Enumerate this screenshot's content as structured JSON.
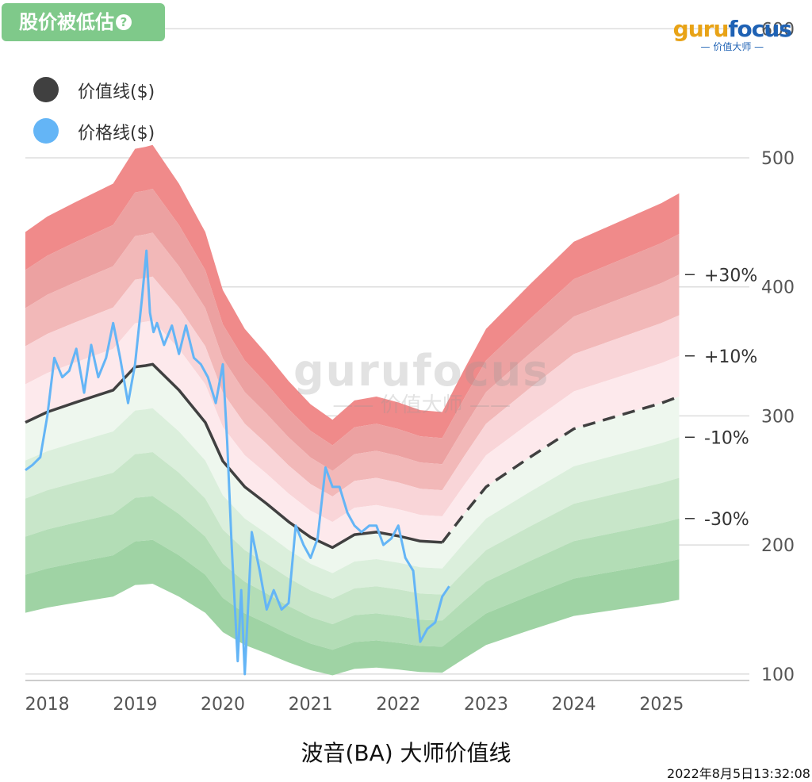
{
  "badge": {
    "label": "股价被低估",
    "help_icon": "question-icon"
  },
  "logo": {
    "part1": "guru",
    "part2": "focus",
    "tagline": "价值大师"
  },
  "watermark": {
    "word": "gurufocus",
    "tagline": "价值大师"
  },
  "legend": [
    {
      "label": "价值线($)",
      "color": "#404040"
    },
    {
      "label": "价格线($)",
      "color": "#64b5f6"
    }
  ],
  "caption": "波音(BA) 大师价值线",
  "timestamp": "2022年8月5日13:32:08",
  "colors": {
    "value_line": "#404040",
    "price_line": "#64b5f6",
    "red_bands": [
      "#f08a8a",
      "#eca1a1",
      "#f2b8b8",
      "#f9d5d8",
      "#fde9ec"
    ],
    "green_bands": [
      "#eef7ee",
      "#dbefdc",
      "#c8e6c9",
      "#b3ddb6",
      "#9fd3a4",
      "#8ccc92"
    ]
  },
  "chart_data": {
    "type": "line",
    "title": "波音(BA) 大师价值线",
    "x_ticks": [
      "2018",
      "2019",
      "2020",
      "2021",
      "2022",
      "2023",
      "2024",
      "2025"
    ],
    "x_range": [
      2017.75,
      2026.0
    ],
    "y_range": [
      95,
      610
    ],
    "y_ticks": [
      100,
      200,
      300,
      400,
      500,
      600
    ],
    "y_axis_side": "right",
    "grid": true,
    "legend_position": "top-left",
    "band_labels": [
      {
        "label": "+30%",
        "factor": 1.3
      },
      {
        "label": "+10%",
        "factor": 1.1
      },
      {
        "label": "-10%",
        "factor": 0.9
      },
      {
        "label": "-30%",
        "factor": 0.7
      }
    ],
    "band_factors": [
      1.5,
      1.4,
      1.3,
      1.2,
      1.1,
      1.0,
      0.9,
      0.8,
      0.7,
      0.6,
      0.5
    ],
    "value_line": {
      "name": "价值线($)",
      "x": [
        2017.75,
        2018.0,
        2018.3,
        2018.75,
        2019.0,
        2019.12,
        2019.2,
        2019.5,
        2019.8,
        2020.0,
        2020.25,
        2020.5,
        2020.75,
        2021.0,
        2021.25,
        2021.5,
        2021.75,
        2022.0,
        2022.25,
        2022.5
      ],
      "y": [
        295,
        303,
        310,
        320,
        338,
        339,
        340,
        320,
        295,
        265,
        245,
        232,
        218,
        206,
        198,
        208,
        210,
        207,
        203,
        202
      ]
    },
    "value_line_projected": {
      "x": [
        2022.5,
        2022.75,
        2023.0,
        2023.5,
        2024.0,
        2024.5,
        2025.0,
        2025.2
      ],
      "y": [
        202,
        224,
        245,
        268,
        290,
        300,
        310,
        315
      ]
    },
    "price_line": {
      "name": "价格线($)",
      "x": [
        2017.75,
        2017.83,
        2017.92,
        2018.0,
        2018.08,
        2018.17,
        2018.25,
        2018.33,
        2018.42,
        2018.5,
        2018.58,
        2018.67,
        2018.75,
        2018.83,
        2018.92,
        2019.0,
        2019.08,
        2019.13,
        2019.17,
        2019.21,
        2019.25,
        2019.33,
        2019.42,
        2019.5,
        2019.58,
        2019.67,
        2019.75,
        2019.83,
        2019.92,
        2020.0,
        2020.05,
        2020.1,
        2020.17,
        2020.21,
        2020.25,
        2020.33,
        2020.42,
        2020.5,
        2020.58,
        2020.67,
        2020.75,
        2020.83,
        2020.92,
        2021.0,
        2021.08,
        2021.17,
        2021.25,
        2021.33,
        2021.42,
        2021.5,
        2021.58,
        2021.67,
        2021.75,
        2021.83,
        2021.92,
        2022.0,
        2022.08,
        2022.17,
        2022.25,
        2022.33,
        2022.42,
        2022.5,
        2022.58
      ],
      "y": [
        258,
        262,
        268,
        300,
        345,
        330,
        335,
        352,
        318,
        355,
        330,
        345,
        372,
        345,
        310,
        340,
        392,
        428,
        380,
        365,
        372,
        355,
        370,
        348,
        370,
        345,
        340,
        330,
        310,
        340,
        280,
        200,
        110,
        165,
        100,
        210,
        180,
        150,
        165,
        150,
        155,
        215,
        200,
        190,
        205,
        260,
        245,
        245,
        225,
        215,
        210,
        215,
        215,
        200,
        205,
        215,
        190,
        180,
        125,
        135,
        140,
        160,
        168
      ]
    }
  }
}
